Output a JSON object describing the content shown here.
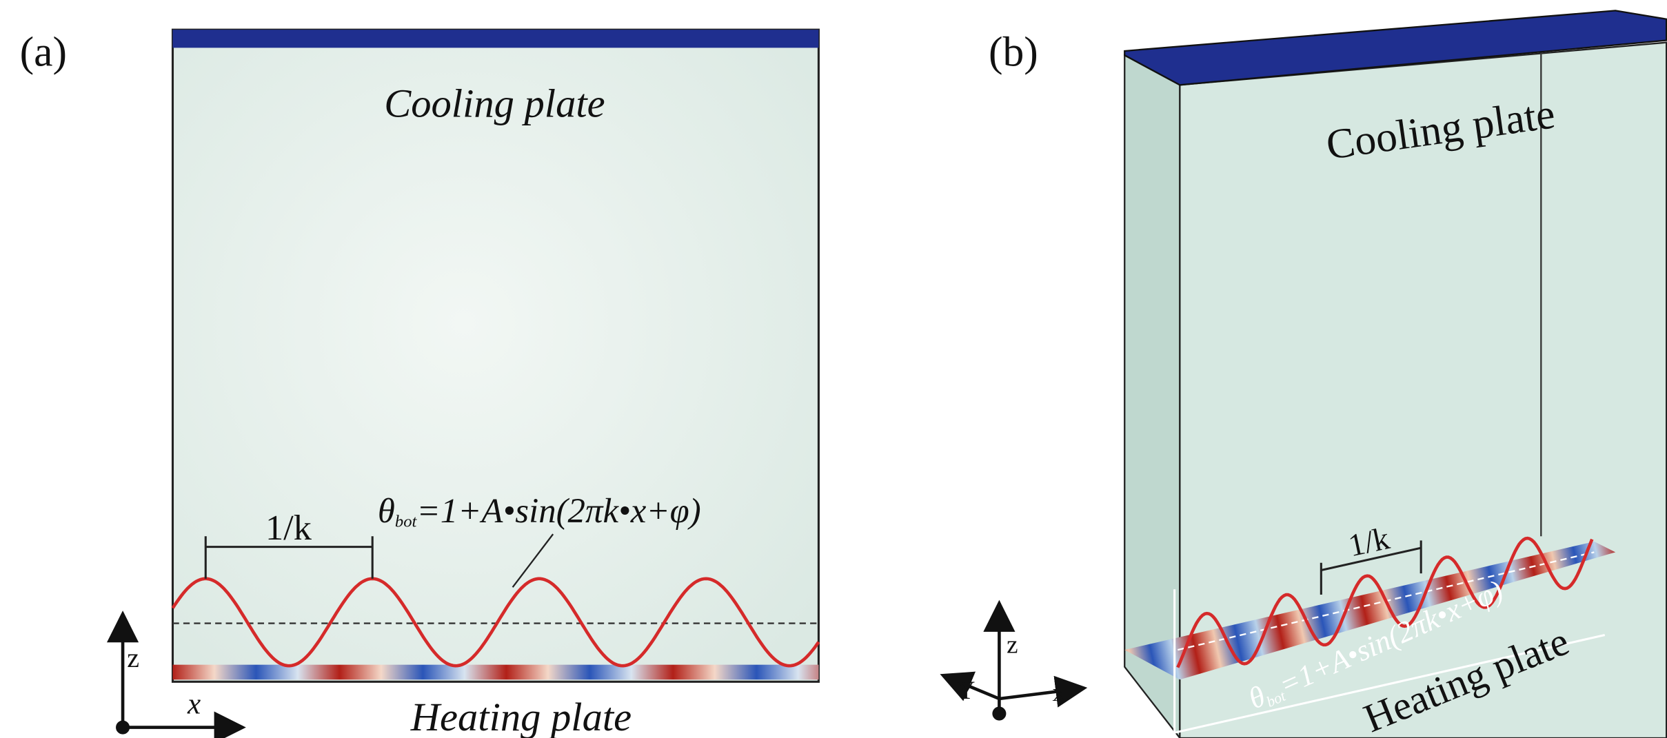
{
  "panel_a": {
    "label": "(a)",
    "cooling_plate": "Cooling plate",
    "heating_plate": "Heating plate",
    "formula": {
      "theta": "θ",
      "subscript": "bot",
      "expression": "=1+A•sin(2πk•x+φ)"
    },
    "wavelength": "1/k",
    "axes": {
      "z": "z",
      "x": "x"
    }
  },
  "panel_b": {
    "label": "(b)",
    "cooling_plate": "Cooling plate",
    "heating_plate": "Heating plate",
    "formula": {
      "theta": "θ",
      "subscript": "bot",
      "expression": "=1+A•sin(2πk•x+φ)"
    },
    "wavelength": "1/k",
    "axes": {
      "z": "z",
      "x": "x",
      "y": "Y"
    }
  }
}
